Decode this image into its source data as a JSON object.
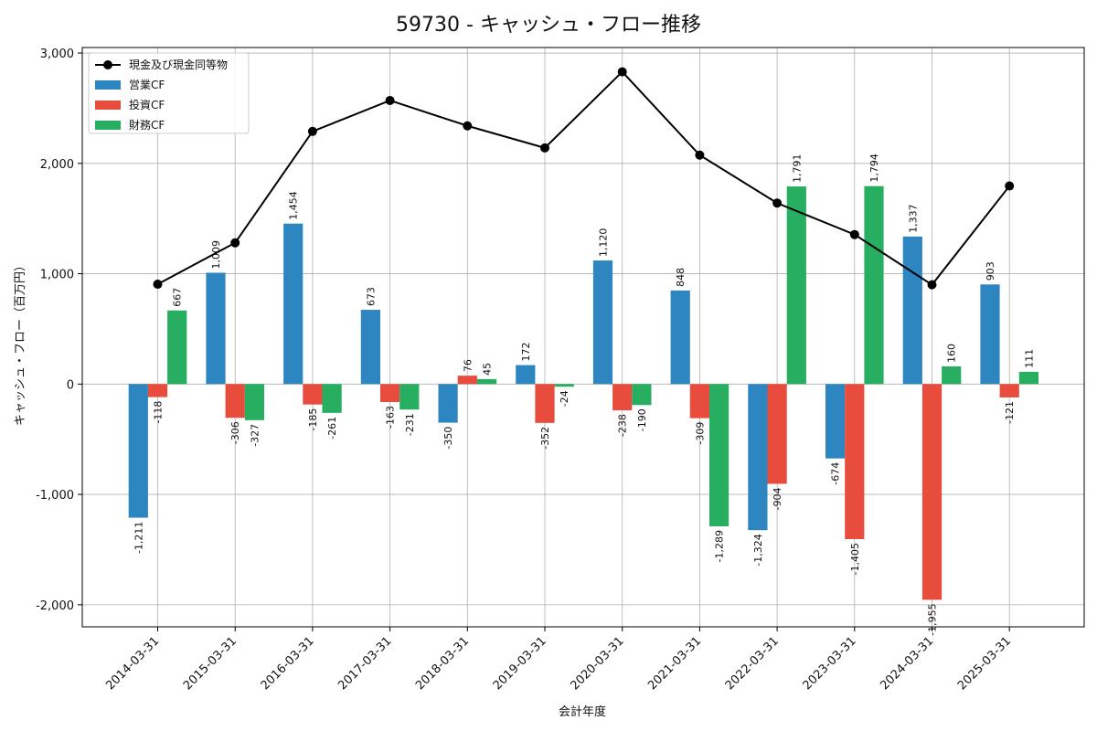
{
  "chart_data": {
    "type": "bar",
    "title": "59730 - キャッシュ・フロー推移",
    "xlabel": "会計年度",
    "ylabel": "キャッシュ・フロー（百万円）",
    "ylim": [
      -2200,
      3050
    ],
    "yticks": [
      3000,
      2000,
      1000,
      0,
      -1000,
      -2000
    ],
    "ytick_labels": [
      "3,000",
      "2,000",
      "1,000",
      "0",
      "-1,000",
      "-2,000"
    ],
    "grid": true,
    "legend_position": "top-left",
    "categories": [
      "2014-03-31",
      "2015-03-31",
      "2016-03-31",
      "2017-03-31",
      "2018-03-31",
      "2019-03-31",
      "2020-03-31",
      "2021-03-31",
      "2022-03-31",
      "2023-03-31",
      "2024-03-31",
      "2025-03-31"
    ],
    "series": [
      {
        "name": "営業CF",
        "type": "bar",
        "color": "#2e86c1",
        "values": [
          -1211,
          1009,
          1454,
          673,
          -350,
          172,
          1120,
          848,
          -1324,
          -674,
          1337,
          903
        ],
        "labels": [
          "-1,211",
          "1,009",
          "1,454",
          "673",
          "-350",
          "172",
          "1,120",
          "848",
          "-1,324",
          "-674",
          "1,337",
          "903"
        ]
      },
      {
        "name": "投資CF",
        "type": "bar",
        "color": "#e74c3c",
        "values": [
          -118,
          -306,
          -185,
          -163,
          76,
          -352,
          -238,
          -309,
          -904,
          -1405,
          -1955,
          -121
        ],
        "labels": [
          "-118",
          "-306",
          "-185",
          "-163",
          "76",
          "-352",
          "-238",
          "-309",
          "-904",
          "-1,405",
          "-1,955",
          "-121"
        ]
      },
      {
        "name": "財務CF",
        "type": "bar",
        "color": "#27ae60",
        "values": [
          667,
          -327,
          -261,
          -231,
          45,
          -24,
          -190,
          -1289,
          1791,
          1794,
          160,
          111
        ],
        "labels": [
          "667",
          "-327",
          "-261",
          "-231",
          "45",
          "-24",
          "-190",
          "-1,289",
          "1,791",
          "1,794",
          "160",
          "111"
        ]
      },
      {
        "name": "現金及び現金同等物",
        "type": "line",
        "color": "#000000",
        "values": [
          905,
          1280,
          2290,
          2570,
          2340,
          2140,
          2830,
          2075,
          1640,
          1355,
          900,
          1795
        ]
      }
    ]
  }
}
